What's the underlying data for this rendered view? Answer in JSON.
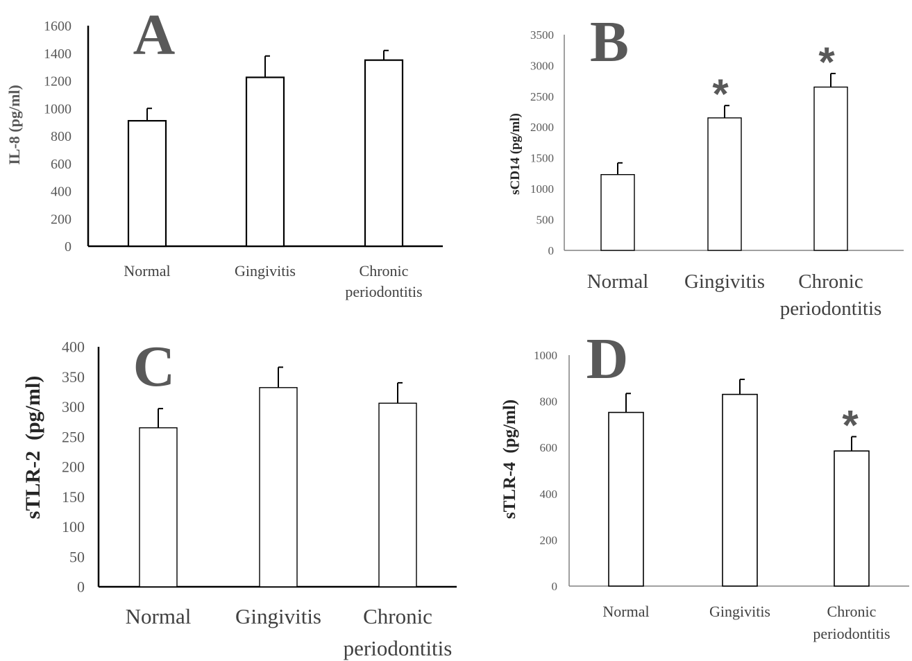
{
  "chart_data": [
    {
      "type": "bar",
      "panel": "A",
      "ylabel": "IL-8 (pg/ml)",
      "ylim": [
        0,
        1600
      ],
      "ticks": [
        0,
        200,
        400,
        600,
        800,
        1000,
        1200,
        1400,
        1600
      ],
      "categories": [
        "Normal",
        "Gingivitis",
        "Chronic\nperiodontitis"
      ],
      "values": [
        910,
        1225,
        1350
      ],
      "errors": [
        90,
        155,
        70
      ],
      "significance": [
        "",
        "",
        ""
      ]
    },
    {
      "type": "bar",
      "panel": "B",
      "ylabel": "sCD14 (pg/ml)",
      "ylim": [
        0,
        3500
      ],
      "ticks": [
        0,
        500,
        1000,
        1500,
        2000,
        2500,
        3000,
        3500
      ],
      "categories": [
        "Normal",
        "Gingivitis",
        "Chronic\nperiodontitis"
      ],
      "values": [
        1230,
        2150,
        2650
      ],
      "errors": [
        190,
        200,
        220
      ],
      "significance": [
        "",
        "*",
        "*"
      ]
    },
    {
      "type": "bar",
      "panel": "C",
      "ylabel": "sTLR-2  (pg/ml)",
      "ylim": [
        0,
        400
      ],
      "ticks": [
        0,
        50,
        100,
        150,
        200,
        250,
        300,
        350,
        400
      ],
      "categories": [
        "Normal",
        "Gingivitis",
        "Chronic\nperiodontitis"
      ],
      "values": [
        265,
        332,
        306
      ],
      "errors": [
        32,
        34,
        34
      ],
      "significance": [
        "",
        "",
        ""
      ]
    },
    {
      "type": "bar",
      "panel": "D",
      "ylabel": "sTLR-4  (pg/ml)",
      "ylim": [
        0,
        1000
      ],
      "ticks": [
        0,
        200,
        400,
        600,
        800,
        1000
      ],
      "categories": [
        "Normal",
        "Gingivitis",
        "Chronic\nperiodontitis"
      ],
      "values": [
        752,
        830,
        585
      ],
      "errors": [
        82,
        65,
        62
      ],
      "significance": [
        "",
        "",
        "*"
      ]
    }
  ]
}
